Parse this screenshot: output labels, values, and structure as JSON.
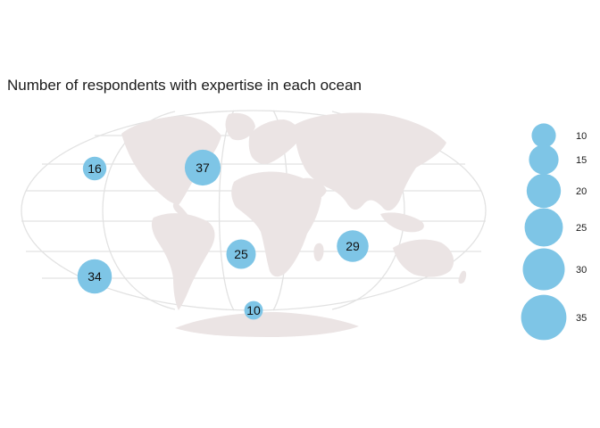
{
  "title": "Number of respondents with expertise in each ocean",
  "colors": {
    "bubble": "#7ec5e6",
    "land": "#ebe4e4",
    "graticule": "#e2e2e2",
    "background": "#ffffff"
  },
  "map": {
    "projection": "mollweide",
    "graticule": true,
    "land_fill": "light grey"
  },
  "oceans": [
    {
      "value": 16
    },
    {
      "value": 37
    },
    {
      "value": 34
    },
    {
      "value": 25
    },
    {
      "value": 29
    },
    {
      "value": 10
    }
  ],
  "legend": {
    "position": "right",
    "values": [
      10,
      15,
      20,
      25,
      30,
      35
    ],
    "labels": [
      "10",
      "15",
      "20",
      "25",
      "30",
      "35"
    ]
  }
}
